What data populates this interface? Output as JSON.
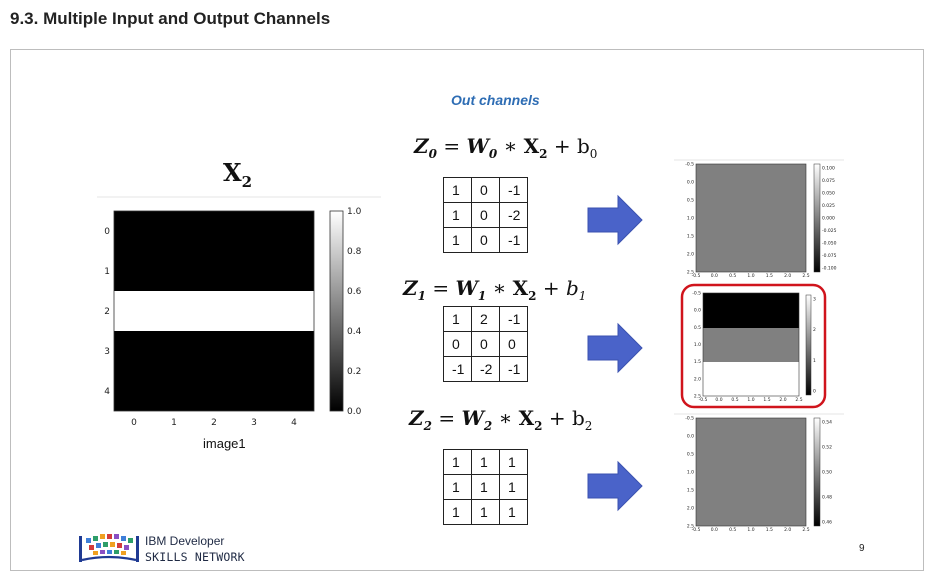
{
  "page": {
    "heading": "9.3. Multiple Input and Output Channels"
  },
  "slide": {
    "out_channels_label": "Out channels",
    "input_title": "X",
    "input_title_sub": "2",
    "image_label": "image1",
    "page_number": "9",
    "logo": {
      "line1": "IBM Developer",
      "line2": "SKILLS NETWORK"
    },
    "input_plot": {
      "y_ticks": [
        "0",
        "1",
        "2",
        "3",
        "4"
      ],
      "x_ticks": [
        "0",
        "1",
        "2",
        "3",
        "4"
      ],
      "colorbar_ticks": [
        "1.0",
        "0.8",
        "0.6",
        "0.4",
        "0.2",
        "0.0"
      ]
    },
    "equations": [
      {
        "z": "Z",
        "sub": "0",
        "w": "W",
        "wsub": "0",
        "x": "X",
        "xsub": "2",
        "b": "b",
        "bsub": "0"
      },
      {
        "z": "Z",
        "sub": "1",
        "w": "W",
        "wsub": "1",
        "x": "X",
        "xsub": "2",
        "b": "b",
        "bsub": "1"
      },
      {
        "z": "Z",
        "sub": "2",
        "w": "W",
        "wsub": "2",
        "x": "X",
        "xsub": "2",
        "b": "b",
        "bsub": "2"
      }
    ],
    "kernels": [
      [
        [
          "1",
          "0",
          "-1"
        ],
        [
          "1",
          "0",
          "-2"
        ],
        [
          "1",
          "0",
          "-1"
        ]
      ],
      [
        [
          "1",
          "2",
          "-1"
        ],
        [
          "0",
          "0",
          "0"
        ],
        [
          "-1",
          "-2",
          "-1"
        ]
      ],
      [
        [
          "1",
          "1",
          "1"
        ],
        [
          "1",
          "1",
          "1"
        ],
        [
          "1",
          "1",
          "1"
        ]
      ]
    ],
    "output_plots": [
      {
        "y_ticks": [
          "-0.5",
          "0.0",
          "0.5",
          "1.0",
          "1.5",
          "2.0",
          "2.5"
        ],
        "x_ticks": [
          "-0.5",
          "0.0",
          "0.5",
          "1.0",
          "1.5",
          "2.0",
          "2.5"
        ],
        "colorbar_ticks": [
          "0.100",
          "0.075",
          "0.050",
          "0.025",
          "0.000",
          "-0.025",
          "-0.050",
          "-0.075",
          "-0.100"
        ]
      },
      {
        "y_ticks": [
          "-0.5",
          "0.0",
          "0.5",
          "1.0",
          "1.5",
          "2.0",
          "2.5"
        ],
        "x_ticks": [
          "-0.5",
          "0.0",
          "0.5",
          "1.0",
          "1.5",
          "2.0",
          "2.5"
        ],
        "colorbar_ticks": [
          "3",
          "2",
          "1",
          "0"
        ],
        "highlighted": true
      },
      {
        "y_ticks": [
          "-0.5",
          "0.0",
          "0.5",
          "1.0",
          "1.5",
          "2.0",
          "2.5"
        ],
        "x_ticks": [
          "-0.5",
          "0.0",
          "0.5",
          "1.0",
          "1.5",
          "2.0",
          "2.5"
        ],
        "colorbar_ticks": [
          "0.54",
          "0.52",
          "0.50",
          "0.48",
          "0.46"
        ]
      }
    ],
    "colors": {
      "accent_blue": "#4a63c9",
      "highlight_red": "#d0141c",
      "title_blue": "#2e6db4"
    }
  }
}
